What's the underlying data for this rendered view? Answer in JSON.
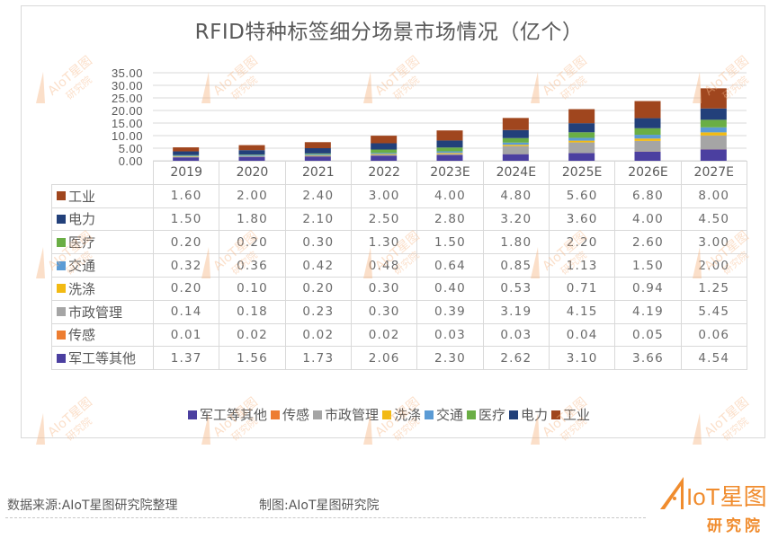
{
  "chart_data": {
    "type": "bar",
    "stacked": true,
    "title": "RFID特种标签细分场景市场情况（亿个）",
    "categories": [
      "2019",
      "2020",
      "2021",
      "2022",
      "2023E",
      "2024E",
      "2025E",
      "2026E",
      "2027E"
    ],
    "ylim": [
      0,
      35
    ],
    "yticks": [
      "0.00",
      "5.00",
      "10.00",
      "15.00",
      "20.00",
      "25.00",
      "30.00",
      "35.00"
    ],
    "ytick_values": [
      0,
      5,
      10,
      15,
      20,
      25,
      30,
      35
    ],
    "grid": true,
    "legend_position": "bottom",
    "series": [
      {
        "name": "军工等其他",
        "color": "#4B3FA0",
        "values": [
          1.37,
          1.56,
          1.73,
          2.06,
          2.3,
          2.62,
          3.1,
          3.66,
          4.54
        ],
        "labels": [
          "1.37",
          "1.56",
          "1.73",
          "2.06",
          "2.30",
          "2.62",
          "3.10",
          "3.66",
          "4.54"
        ]
      },
      {
        "name": "传感",
        "color": "#ED7D31",
        "values": [
          0.01,
          0.02,
          0.02,
          0.02,
          0.03,
          0.03,
          0.04,
          0.05,
          0.06
        ],
        "labels": [
          "0.01",
          "0.02",
          "0.02",
          "0.02",
          "0.03",
          "0.03",
          "0.04",
          "0.05",
          "0.06"
        ]
      },
      {
        "name": "市政管理",
        "color": "#A5A5A5",
        "values": [
          0.14,
          0.18,
          0.23,
          0.3,
          0.39,
          3.19,
          4.15,
          4.19,
          5.45
        ],
        "labels": [
          "0.14",
          "0.18",
          "0.23",
          "0.30",
          "0.39",
          "3.19",
          "4.15",
          "4.19",
          "5.45"
        ]
      },
      {
        "name": "洗涤",
        "color": "#F2BA13",
        "values": [
          0.2,
          0.1,
          0.2,
          0.3,
          0.4,
          0.53,
          0.71,
          0.94,
          1.25
        ],
        "labels": [
          "0.20",
          "0.10",
          "0.20",
          "0.30",
          "0.40",
          "0.53",
          "0.71",
          "0.94",
          "1.25"
        ]
      },
      {
        "name": "交通",
        "color": "#5B9BD5",
        "values": [
          0.32,
          0.36,
          0.42,
          0.48,
          0.64,
          0.85,
          1.13,
          1.5,
          2.0
        ],
        "labels": [
          "0.32",
          "0.36",
          "0.42",
          "0.48",
          "0.64",
          "0.85",
          "1.13",
          "1.50",
          "2.00"
        ]
      },
      {
        "name": "医疗",
        "color": "#6AAE45",
        "values": [
          0.2,
          0.2,
          0.3,
          1.3,
          1.5,
          1.8,
          2.2,
          2.6,
          3.0
        ],
        "labels": [
          "0.20",
          "0.20",
          "0.30",
          "1.30",
          "1.50",
          "1.80",
          "2.20",
          "2.60",
          "3.00"
        ]
      },
      {
        "name": "电力",
        "color": "#22407A",
        "values": [
          1.5,
          1.8,
          2.1,
          2.5,
          2.8,
          3.2,
          3.6,
          4.0,
          4.5
        ],
        "labels": [
          "1.50",
          "1.80",
          "2.10",
          "2.50",
          "2.80",
          "3.20",
          "3.60",
          "4.00",
          "4.50"
        ]
      },
      {
        "name": "工业",
        "color": "#A0461E",
        "values": [
          1.6,
          2.0,
          2.4,
          3.0,
          4.0,
          4.8,
          5.6,
          6.8,
          8.0
        ],
        "labels": [
          "1.60",
          "2.00",
          "2.40",
          "3.00",
          "4.00",
          "4.80",
          "5.60",
          "6.80",
          "8.00"
        ]
      }
    ],
    "table_row_order": [
      "工业",
      "电力",
      "医疗",
      "交通",
      "洗涤",
      "市政管理",
      "传感",
      "军工等其他"
    ]
  },
  "footer": {
    "source": "数据来源:AIoT星图研究院整理",
    "made_by": "制图:AIoT星图研究院"
  },
  "logo": {
    "line1": "AIoT星图",
    "line2": "研究院",
    "color": "#F08C2E"
  },
  "watermark": {
    "text1": "AIoT星图",
    "text2": "研究院",
    "color": "#F7B98A"
  }
}
